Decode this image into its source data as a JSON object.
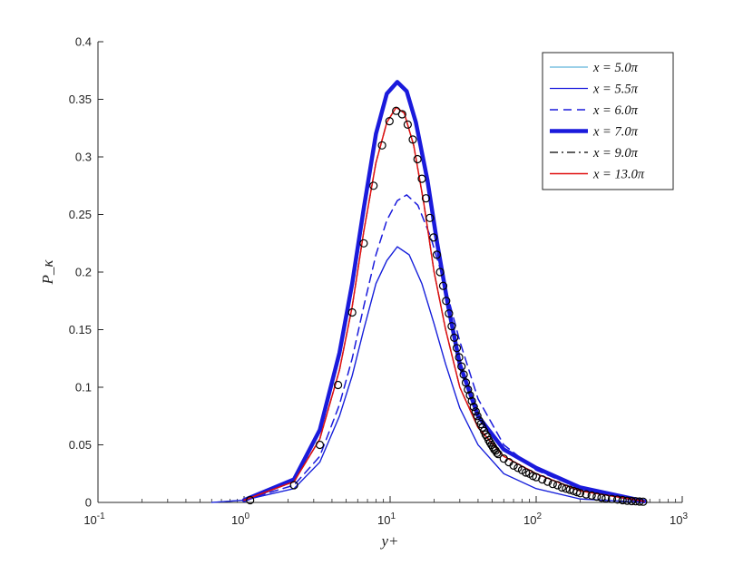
{
  "chart_data": {
    "type": "line",
    "xlabel": "y+",
    "ylabel": "P_κ",
    "xscale": "log",
    "xlim": [
      0.1,
      1000
    ],
    "ylim": [
      0,
      0.4
    ],
    "xticks": [
      {
        "value": 0.1,
        "base": "10",
        "exp": "-1"
      },
      {
        "value": 1,
        "base": "10",
        "exp": "0"
      },
      {
        "value": 10,
        "base": "10",
        "exp": "1"
      },
      {
        "value": 100,
        "base": "10",
        "exp": "2"
      },
      {
        "value": 1000,
        "base": "10",
        "exp": "3"
      }
    ],
    "yticks": [
      "0",
      "0.05",
      "0.1",
      "0.15",
      "0.2",
      "0.25",
      "0.3",
      "0.35",
      "0.4"
    ],
    "legend_position": "top-right",
    "series": [
      {
        "name": "x = 5.0π",
        "color": "#5fb4d9",
        "style": "solid",
        "width": 1.3,
        "x": [
          0.6,
          1.0,
          2.2,
          3.3,
          4.5,
          5.5,
          6.6,
          8.0,
          9.5,
          11.2,
          13.5,
          16.5,
          20.0,
          24.0,
          30.0,
          40.0,
          60.0,
          100.0,
          200.0,
          550.0
        ],
        "y": [
          0.0,
          0.002,
          0.012,
          0.035,
          0.075,
          0.11,
          0.15,
          0.19,
          0.21,
          0.222,
          0.215,
          0.19,
          0.155,
          0.12,
          0.082,
          0.05,
          0.025,
          0.012,
          0.003,
          0.0
        ]
      },
      {
        "name": "x = 5.5π",
        "color": "#1a1adc",
        "style": "solid",
        "width": 1.3,
        "x": [
          0.6,
          1.0,
          2.2,
          3.3,
          4.5,
          5.5,
          6.6,
          8.0,
          9.5,
          11.2,
          13.5,
          16.5,
          20.0,
          24.0,
          30.0,
          40.0,
          60.0,
          100.0,
          200.0,
          550.0
        ],
        "y": [
          0.0,
          0.002,
          0.012,
          0.035,
          0.075,
          0.11,
          0.15,
          0.19,
          0.21,
          0.222,
          0.215,
          0.19,
          0.155,
          0.12,
          0.082,
          0.05,
          0.025,
          0.012,
          0.003,
          0.0
        ]
      },
      {
        "name": "x = 6.0π",
        "color": "#1a1adc",
        "style": "dashed",
        "width": 1.5,
        "x": [
          1.0,
          2.2,
          3.3,
          4.5,
          5.5,
          6.6,
          8.0,
          9.5,
          11.2,
          13.0,
          15.5,
          19.0,
          23.0,
          30.0,
          40.0,
          60.0,
          100.0,
          200.0,
          550.0
        ],
        "y": [
          0.002,
          0.015,
          0.04,
          0.085,
          0.125,
          0.17,
          0.215,
          0.245,
          0.262,
          0.267,
          0.258,
          0.23,
          0.195,
          0.14,
          0.09,
          0.05,
          0.028,
          0.012,
          0.001
        ]
      },
      {
        "name": "x = 7.0π",
        "color": "#1a1adc",
        "style": "solid",
        "width": 4.5,
        "x": [
          1.0,
          2.2,
          3.3,
          4.5,
          5.5,
          6.6,
          8.0,
          9.5,
          11.2,
          13.0,
          15.0,
          18.0,
          21.0,
          25.0,
          30.0,
          40.0,
          60.0,
          100.0,
          200.0,
          550.0
        ],
        "y": [
          0.002,
          0.02,
          0.063,
          0.13,
          0.19,
          0.255,
          0.32,
          0.355,
          0.365,
          0.357,
          0.33,
          0.28,
          0.225,
          0.17,
          0.12,
          0.075,
          0.046,
          0.03,
          0.013,
          0.001
        ]
      },
      {
        "name": "x = 9.0π",
        "color": "#000000",
        "style": "dashdot",
        "width": 1.3,
        "x": [
          1.0,
          2.2,
          3.3,
          4.5,
          5.5,
          6.6,
          8.0,
          9.5,
          11.0,
          12.5,
          14.5,
          17.0,
          20.0,
          24.0,
          30.0,
          40.0,
          60.0,
          100.0,
          200.0,
          550.0
        ],
        "y": [
          0.002,
          0.018,
          0.055,
          0.115,
          0.17,
          0.235,
          0.295,
          0.33,
          0.343,
          0.338,
          0.31,
          0.26,
          0.2,
          0.15,
          0.1,
          0.065,
          0.04,
          0.025,
          0.01,
          0.001
        ]
      },
      {
        "name": "x = 13.0π",
        "color": "#e01010",
        "style": "solid",
        "width": 1.5,
        "x": [
          1.0,
          2.2,
          3.3,
          4.5,
          5.5,
          6.6,
          8.0,
          9.5,
          11.0,
          12.5,
          14.5,
          17.0,
          20.0,
          24.0,
          30.0,
          40.0,
          60.0,
          100.0,
          200.0,
          550.0
        ],
        "y": [
          0.002,
          0.018,
          0.055,
          0.115,
          0.17,
          0.235,
          0.295,
          0.33,
          0.343,
          0.338,
          0.31,
          0.26,
          0.2,
          0.15,
          0.1,
          0.065,
          0.04,
          0.025,
          0.01,
          0.001
        ]
      }
    ],
    "reference_points": {
      "marker": "circle",
      "x": [
        1.1,
        2.2,
        3.3,
        4.4,
        5.5,
        6.6,
        7.7,
        8.8,
        9.9,
        11.0,
        12.1,
        13.2,
        14.3,
        15.4,
        16.5,
        17.6,
        18.7,
        19.8,
        20.9,
        22.0,
        23.1,
        24.2,
        25.3,
        26.4,
        27.5,
        28.6,
        29.7,
        30.8,
        31.9,
        33.0,
        34.1,
        35.2,
        36.3,
        37.4,
        38.5,
        39.6,
        40.7,
        41.8,
        42.9,
        44.0,
        45.1,
        46.2,
        47.3,
        48.4,
        49.5,
        50.6,
        51.7,
        52.8,
        53.9,
        55.0,
        60.0,
        65.0,
        70.0,
        75.0,
        80.0,
        85.0,
        90.0,
        95.0,
        100.0,
        110.0,
        120.0,
        130.0,
        140.0,
        150.0,
        160.0,
        170.0,
        180.0,
        190.0,
        200.0,
        220.0,
        240.0,
        260.0,
        280.0,
        300.0,
        330.0,
        360.0,
        390.0,
        420.0,
        450.0,
        480.0,
        510.0,
        540.0
      ],
      "y": [
        0.002,
        0.015,
        0.05,
        0.102,
        0.165,
        0.225,
        0.275,
        0.31,
        0.331,
        0.34,
        0.337,
        0.328,
        0.315,
        0.298,
        0.281,
        0.264,
        0.247,
        0.23,
        0.215,
        0.2,
        0.188,
        0.175,
        0.164,
        0.153,
        0.143,
        0.134,
        0.126,
        0.118,
        0.111,
        0.104,
        0.098,
        0.093,
        0.088,
        0.083,
        0.079,
        0.075,
        0.071,
        0.068,
        0.065,
        0.062,
        0.059,
        0.057,
        0.054,
        0.052,
        0.05,
        0.048,
        0.046,
        0.045,
        0.043,
        0.042,
        0.038,
        0.035,
        0.032,
        0.03,
        0.028,
        0.026,
        0.025,
        0.023,
        0.022,
        0.02,
        0.018,
        0.016,
        0.015,
        0.013,
        0.012,
        0.011,
        0.01,
        0.009,
        0.008,
        0.007,
        0.006,
        0.005,
        0.004,
        0.0035,
        0.003,
        0.0025,
        0.002,
        0.0015,
        0.0012,
        0.001,
        0.0008,
        0.0006
      ]
    }
  }
}
